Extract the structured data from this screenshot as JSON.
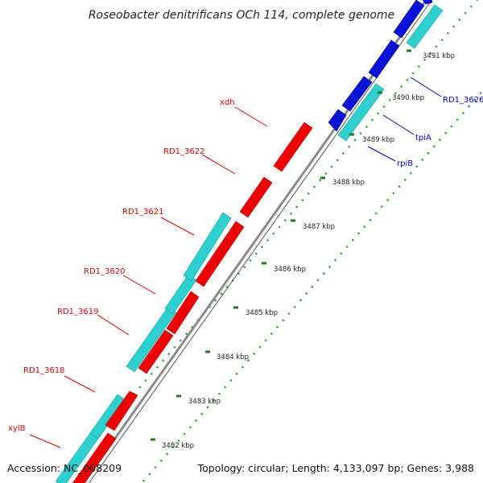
{
  "title": "Roseobacter denitrificans OCh 114, complete genome",
  "footer": {
    "accession": "Accession: NC_008209",
    "summary": "Topology: circular; Length: 4,133,097 bp; Genes: 3,988"
  },
  "colors": {
    "backbone": "#8a8a8a",
    "tick_major": "#1a7a1a",
    "tick_minor": "#2a9a2a",
    "red_gene": "#ee0000",
    "cyan_gene": "#2ecfcf",
    "blue_gene": "#0a12d8",
    "red_label": "#dd0000",
    "blue_label": "#0000cc"
  },
  "kbp_labels": [
    "3482 kbp",
    "3483 kbp",
    "3484 kbp",
    "3485 kbp",
    "3486 kbp",
    "3487 kbp",
    "3488 kbp",
    "3489 kbp",
    "3490 kbp",
    "3491 kbp"
  ],
  "left_gene_labels": [
    "xylB",
    "RD1_3618",
    "RD1_3619",
    "RD1_3620",
    "RD1_3621",
    "RD1_3622",
    "xdh"
  ],
  "right_gene_labels": [
    "rpiB",
    "tpiA",
    "RD1_3626"
  ]
}
